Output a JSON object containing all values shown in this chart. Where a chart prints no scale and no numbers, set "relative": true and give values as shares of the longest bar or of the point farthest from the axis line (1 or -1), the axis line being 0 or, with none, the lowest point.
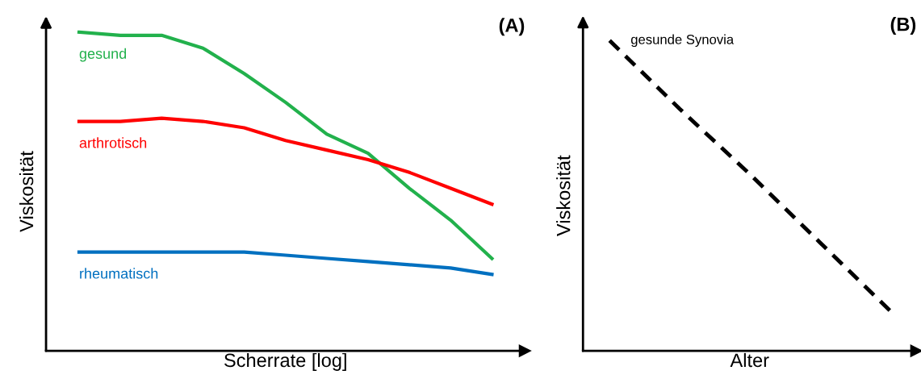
{
  "chart_data": [
    {
      "type": "line",
      "title": "(A)",
      "xlabel": "Scherrate [log]",
      "ylabel": "Viskosität",
      "relative": true,
      "tick_labels": false,
      "legend": false,
      "categories": [
        null,
        null,
        null,
        null,
        null,
        null,
        null,
        null,
        null,
        null,
        null
      ],
      "series": [
        {
          "name": "gesund",
          "color": "#22b14c",
          "values": [
            1.0,
            0.99,
            0.99,
            0.95,
            0.87,
            0.78,
            0.68,
            0.62,
            0.51,
            0.41,
            0.29
          ]
        },
        {
          "name": "arthrotisch",
          "color": "#ff0000",
          "values": [
            0.72,
            0.72,
            0.73,
            0.72,
            0.7,
            0.66,
            0.63,
            0.6,
            0.56,
            0.51,
            0.46
          ]
        },
        {
          "name": "rheumatisch",
          "color": "#0070c0",
          "values": [
            0.31,
            0.31,
            0.31,
            0.31,
            0.31,
            0.3,
            0.29,
            0.28,
            0.27,
            0.26,
            0.24
          ]
        }
      ]
    },
    {
      "type": "line",
      "title": "(B)",
      "xlabel": "Alter",
      "ylabel": "Viskosität",
      "relative": true,
      "tick_labels": false,
      "legend": false,
      "line_style": "dashed",
      "categories": [
        null,
        null,
        null,
        null,
        null
      ],
      "series": [
        {
          "name": "gesunde Synovia",
          "color": "#000000",
          "values": [
            1.0,
            0.78,
            0.57,
            0.35,
            0.13
          ]
        }
      ]
    }
  ]
}
